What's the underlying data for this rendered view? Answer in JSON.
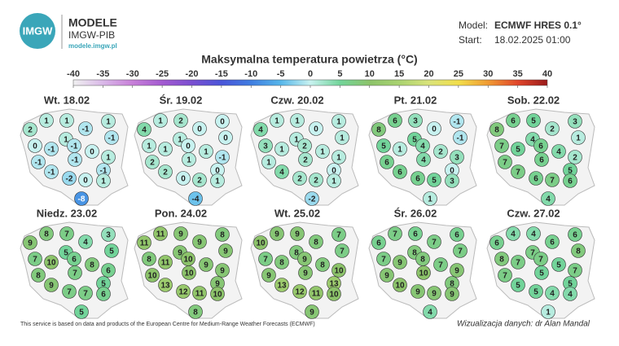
{
  "header": {
    "logo_text": "IMGW",
    "brand": "MODELE",
    "org": "IMGW-PIB",
    "url": "modele.imgw.pl",
    "model_label": "Model:",
    "model_value": "ECMWF HRES 0.1°",
    "start_label": "Start:",
    "start_value": "18.02.2025 01:00"
  },
  "chart_data": {
    "type": "map",
    "title": "Maksymalna temperatura powietrza (°C)",
    "colorbar": {
      "ticks": [
        -40,
        -35,
        -30,
        -25,
        -20,
        -15,
        -10,
        -5,
        0,
        5,
        10,
        15,
        20,
        25,
        30,
        35,
        40
      ],
      "colors": [
        "#f0f0f0",
        "#d9b8e8",
        "#c77fd8",
        "#a35ad0",
        "#7a4fd0",
        "#4a55d8",
        "#3f7de0",
        "#56b6ea",
        "#c8f2f0",
        "#72d49a",
        "#8cc36a",
        "#a9d270",
        "#d9e37a",
        "#f2de4a",
        "#f09a32",
        "#e0452a",
        "#9a1a1a"
      ]
    },
    "panels": [
      {
        "title": "Wt. 18.02",
        "values": [
          1,
          1,
          1,
          2,
          -1,
          -1,
          1,
          0,
          -1,
          -1,
          0,
          -1,
          -1,
          1,
          -1,
          -2,
          0,
          -1,
          1,
          -8
        ]
      },
      {
        "title": "Śr. 19.02",
        "values": [
          1,
          2,
          0,
          4,
          0,
          0,
          1,
          1,
          1,
          0,
          1,
          2,
          1,
          -1,
          2,
          0,
          2,
          0,
          1,
          -4
        ]
      },
      {
        "title": "Czw. 20.02",
        "values": [
          1,
          1,
          1,
          4,
          0,
          1,
          1,
          3,
          1,
          2,
          1,
          1,
          2,
          1,
          4,
          2,
          2,
          0,
          1,
          -2
        ]
      },
      {
        "title": "Pt. 21.02",
        "values": [
          6,
          3,
          -1,
          8,
          0,
          -1,
          5,
          5,
          1,
          4,
          2,
          6,
          4,
          3,
          6,
          6,
          5,
          0,
          3,
          1
        ]
      },
      {
        "title": "Sob. 22.02",
        "values": [
          6,
          5,
          3,
          8,
          2,
          1,
          4,
          7,
          5,
          6,
          4,
          7,
          6,
          2,
          7,
          6,
          7,
          5,
          6,
          4
        ]
      },
      {
        "title": "Niedz. 23.02",
        "values": [
          8,
          7,
          3,
          9,
          4,
          5,
          5,
          7,
          10,
          6,
          8,
          8,
          7,
          6,
          9,
          7,
          7,
          5,
          6,
          5
        ]
      },
      {
        "title": "Pon. 24.02",
        "values": [
          11,
          9,
          8,
          11,
          9,
          9,
          9,
          8,
          11,
          10,
          9,
          10,
          10,
          9,
          13,
          12,
          11,
          9,
          10,
          8
        ]
      },
      {
        "title": "Wt. 25.02",
        "values": [
          9,
          9,
          7,
          10,
          8,
          7,
          8,
          7,
          8,
          9,
          8,
          9,
          9,
          10,
          13,
          12,
          11,
          13,
          10,
          9
        ]
      },
      {
        "title": "Śr. 26.02",
        "values": [
          7,
          6,
          6,
          6,
          7,
          7,
          8,
          7,
          9,
          8,
          7,
          9,
          10,
          9,
          10,
          9,
          9,
          8,
          9,
          4
        ]
      },
      {
        "title": "Czw. 27.02",
        "values": [
          4,
          4,
          6,
          6,
          6,
          8,
          7,
          8,
          7,
          7,
          5,
          7,
          5,
          7,
          5,
          5,
          4,
          5,
          4,
          1
        ]
      }
    ]
  },
  "footer": {
    "source": "This service is based on data and products of the European Centre for Medium-Range Weather Forecasts (ECMWF)",
    "credit": "Wizualizacja danych: dr Alan Mandal"
  }
}
